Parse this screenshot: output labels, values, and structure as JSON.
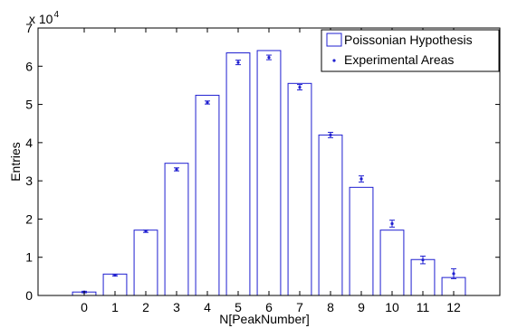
{
  "chart_data": {
    "type": "bar",
    "categories": [
      "0",
      "1",
      "2",
      "3",
      "4",
      "5",
      "6",
      "7",
      "8",
      "9",
      "10",
      "11",
      "12"
    ],
    "x": [
      0,
      1,
      2,
      3,
      4,
      5,
      6,
      7,
      8,
      9,
      10,
      11,
      12
    ],
    "series": [
      {
        "name": "Poissonian Hypothesis",
        "kind": "bar-outline",
        "values": [
          900,
          5600,
          17100,
          34600,
          52400,
          63500,
          64100,
          55500,
          42000,
          28300,
          17100,
          9400,
          4700
        ]
      },
      {
        "name": "Experimental Areas",
        "kind": "point-errorbar",
        "values": [
          900,
          5300,
          16800,
          33000,
          50500,
          61000,
          62300,
          54500,
          42000,
          30500,
          18800,
          9300,
          5700
        ],
        "errors": [
          200,
          200,
          300,
          400,
          400,
          600,
          600,
          700,
          700,
          800,
          900,
          1000,
          1300
        ]
      }
    ],
    "xlabel": "N[PeakNumber]",
    "ylabel": "Entries",
    "ytick_values": [
      0,
      10000,
      20000,
      30000,
      40000,
      50000,
      60000,
      70000
    ],
    "ytick_labels": [
      "0",
      "1",
      "2",
      "3",
      "4",
      "5",
      "6",
      "7"
    ],
    "y_multiplier": {
      "base": "x 10",
      "exponent": "4"
    },
    "xlim": [
      -1.5,
      13.5
    ],
    "ylim": [
      0,
      70000
    ],
    "grid": false,
    "legend_position": "top-right",
    "colors": {
      "series": "#1f1fd0",
      "axis": "#000000"
    }
  }
}
